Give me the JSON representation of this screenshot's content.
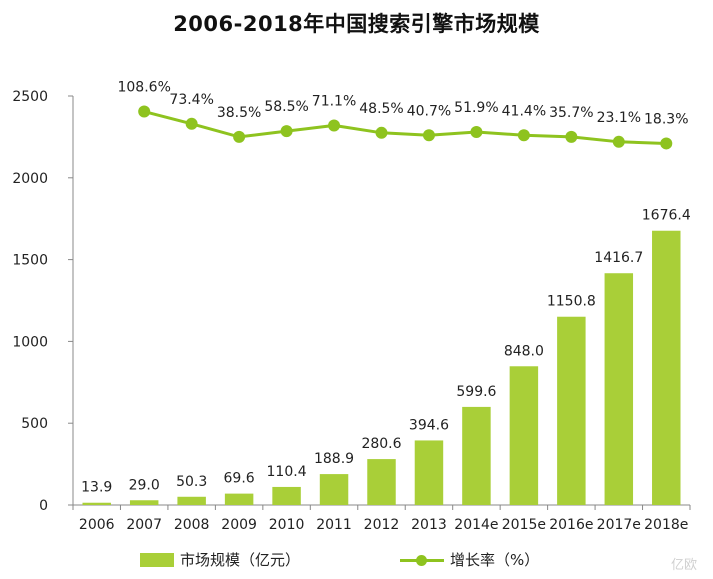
{
  "chart_data": {
    "type": "bar",
    "title": "2006-2018年中国搜索引擎市场规模",
    "categories": [
      "2006",
      "2007",
      "2008",
      "2009",
      "2010",
      "2011",
      "2012",
      "2013",
      "2014e",
      "2015e",
      "2016e",
      "2017e",
      "2018e"
    ],
    "series": [
      {
        "name": "市场规模（亿元）",
        "type": "bar",
        "values": [
          13.9,
          29.0,
          50.3,
          69.6,
          110.4,
          188.9,
          280.6,
          394.6,
          599.6,
          848.0,
          1150.8,
          1416.7,
          1676.4
        ],
        "labels": [
          "13.9",
          "29.0",
          "50.3",
          "69.6",
          "110.4",
          "188.9",
          "280.6",
          "394.6",
          "599.6",
          "848.0",
          "1150.8",
          "1416.7",
          "1676.4"
        ]
      },
      {
        "name": "增长率（%）",
        "type": "line",
        "values": [
          null,
          108.6,
          73.4,
          38.5,
          58.5,
          71.1,
          48.5,
          40.7,
          51.9,
          41.4,
          35.7,
          23.1,
          18.3
        ],
        "labels": [
          "",
          "108.6%",
          "73.4%",
          "38.5%",
          "58.5%",
          "71.1%",
          "48.5%",
          "40.7%",
          "51.9%",
          "41.4%",
          "35.7%",
          "23.1%",
          "18.3%"
        ],
        "plotted_y": [
          null,
          2405,
          2330,
          2250,
          2285,
          2320,
          2275,
          2260,
          2280,
          2260,
          2250,
          2220,
          2210
        ]
      }
    ],
    "ylim": [
      0,
      2500
    ],
    "yticks": [
      0,
      500,
      1000,
      1500,
      2000,
      2500
    ],
    "grid": false,
    "legend_position": "bottom",
    "colors": {
      "bar": "#a9cf38",
      "line": "#8ec31f",
      "axis": "#888888",
      "text": "#222222"
    }
  },
  "watermark": "亿欧"
}
